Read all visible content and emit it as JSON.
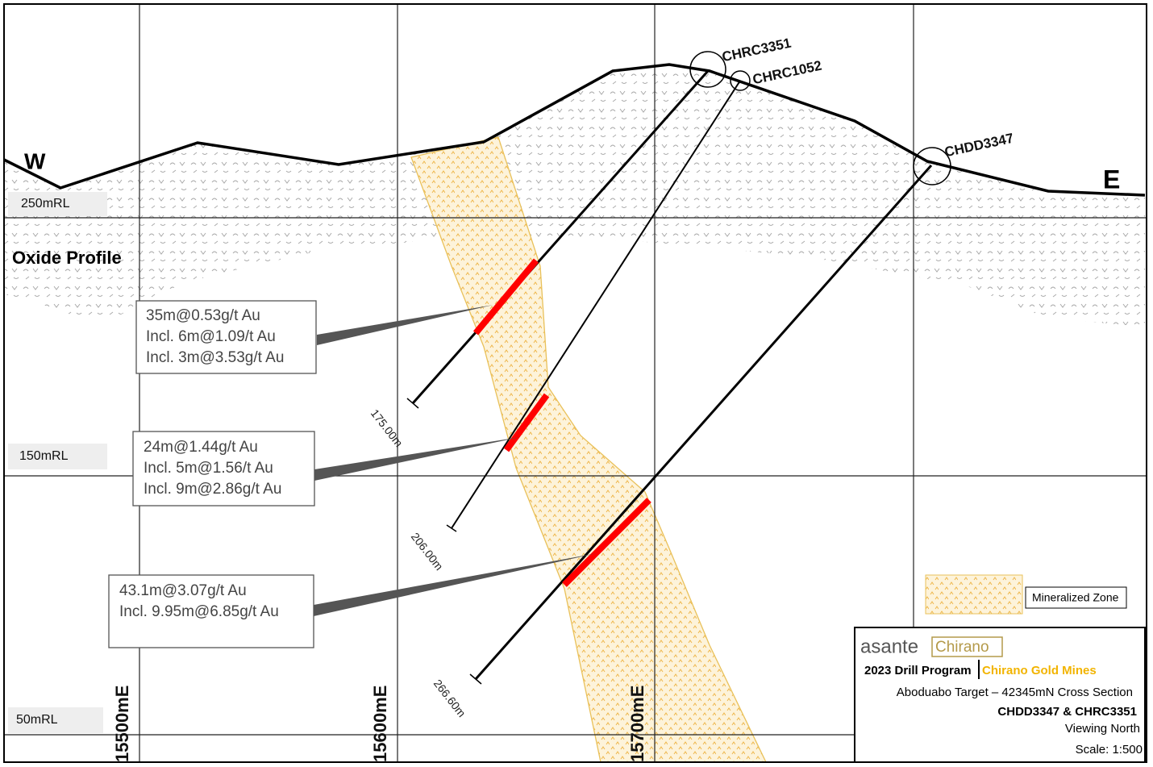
{
  "grid": {
    "northings": [
      "250mRL",
      "150mRL",
      "50mRL"
    ],
    "eastings": [
      "15500mE",
      "15600mE",
      "15700mE"
    ]
  },
  "directions": {
    "west": "W",
    "east": "E"
  },
  "oxide_label": "Oxide Profile",
  "holes": [
    {
      "name": "CHRC3351",
      "depth": "175.00m"
    },
    {
      "name": "CHRC1052",
      "depth": "206.00m"
    },
    {
      "name": "CHDD3347",
      "depth": "266.60m"
    }
  ],
  "intercepts": [
    {
      "lines": [
        "35m@0.53g/t Au",
        "Incl. 6m@1.09/t Au",
        "Incl. 3m@3.53g/t Au"
      ]
    },
    {
      "lines": [
        "24m@1.44g/t Au",
        "Incl. 5m@1.56/t Au",
        "Incl. 9m@2.86g/t Au"
      ]
    },
    {
      "lines": [
        "43.1m@3.07g/t Au",
        "Incl. 9.95m@6.85g/t Au"
      ]
    }
  ],
  "legend": {
    "label": "Mineralized Zone"
  },
  "title_block": {
    "logo": "asante",
    "brand": "Chirano",
    "program": "2023 Drill Program",
    "company": "Chirano Gold Mines",
    "section": "Aboduabo Target – 42345mN Cross Section",
    "holes": "CHDD3347 & CHRC3351",
    "view": "Viewing North",
    "scale": "Scale: 1:500"
  }
}
